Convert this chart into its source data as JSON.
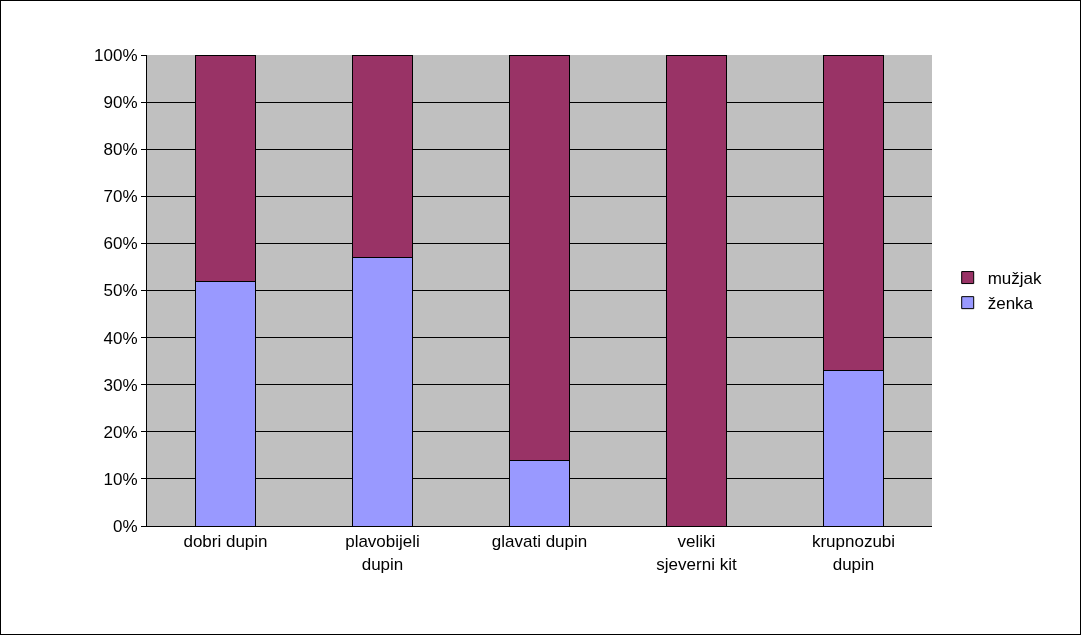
{
  "chart_data": {
    "type": "bar",
    "stacked": true,
    "categories": [
      "dobri dupin",
      "plavobijeli dupin",
      "glavati dupin",
      "veliki sjeverni kit",
      "krupnozubi dupin"
    ],
    "series": [
      {
        "name": "ženka",
        "color": "#9999ff",
        "values": [
          52,
          57,
          14,
          0,
          33
        ]
      },
      {
        "name": "mužjak",
        "color": "#993366",
        "values": [
          48,
          43,
          86,
          100,
          67
        ]
      }
    ],
    "ylim": [
      0,
      100
    ],
    "yticks": [
      {
        "value": 0,
        "label": "0%"
      },
      {
        "value": 10,
        "label": "10%"
      },
      {
        "value": 20,
        "label": "20%"
      },
      {
        "value": 30,
        "label": "30%"
      },
      {
        "value": 40,
        "label": "40%"
      },
      {
        "value": 50,
        "label": "50%"
      },
      {
        "value": 60,
        "label": "60%"
      },
      {
        "value": 70,
        "label": "70%"
      },
      {
        "value": 80,
        "label": "80%"
      },
      {
        "value": 90,
        "label": "90%"
      },
      {
        "value": 100,
        "label": "100%"
      }
    ],
    "grid": "y",
    "legend": "right"
  }
}
